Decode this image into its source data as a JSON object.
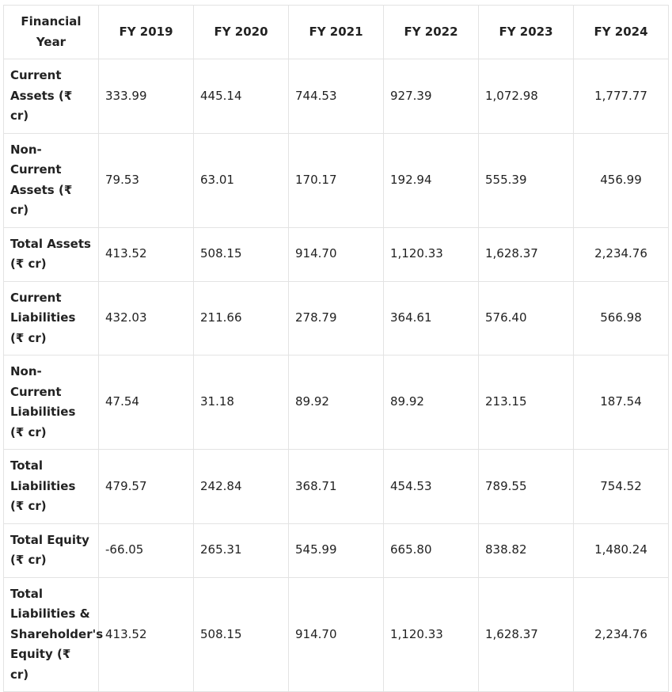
{
  "table": {
    "columns": [
      "Financial Year",
      "FY 2019",
      "FY 2020",
      "FY 2021",
      "FY 2022",
      "FY 2023",
      "FY 2024"
    ],
    "rows": [
      {
        "label": "Current Assets (₹ cr)",
        "values": [
          "333.99",
          "445.14",
          "744.53",
          "927.39",
          "1,072.98",
          "1,777.77"
        ]
      },
      {
        "label": "Non-Current Assets (₹ cr)",
        "values": [
          "79.53",
          "63.01",
          "170.17",
          "192.94",
          "555.39",
          "456.99"
        ]
      },
      {
        "label": "Total Assets (₹ cr)",
        "values": [
          "413.52",
          "508.15",
          "914.70",
          "1,120.33",
          "1,628.37",
          "2,234.76"
        ]
      },
      {
        "label": "Current Liabilities (₹ cr)",
        "values": [
          "432.03",
          "211.66",
          "278.79",
          "364.61",
          "576.40",
          "566.98"
        ]
      },
      {
        "label": "Non-Current Liabilities (₹ cr)",
        "values": [
          "47.54",
          "31.18",
          "89.92",
          "89.92",
          "213.15",
          "187.54"
        ]
      },
      {
        "label": "Total Liabilities (₹ cr)",
        "values": [
          "479.57",
          "242.84",
          "368.71",
          "454.53",
          "789.55",
          "754.52"
        ]
      },
      {
        "label": "Total Equity (₹ cr)",
        "values": [
          "-66.05",
          "265.31",
          "545.99",
          "665.80",
          "838.82",
          "1,480.24"
        ]
      },
      {
        "label": "Total Liabilities & Shareholder's Equity (₹ cr)",
        "values": [
          "413.52",
          "508.15",
          "914.70",
          "1,120.33",
          "1,628.37",
          "2,234.76"
        ]
      }
    ]
  }
}
